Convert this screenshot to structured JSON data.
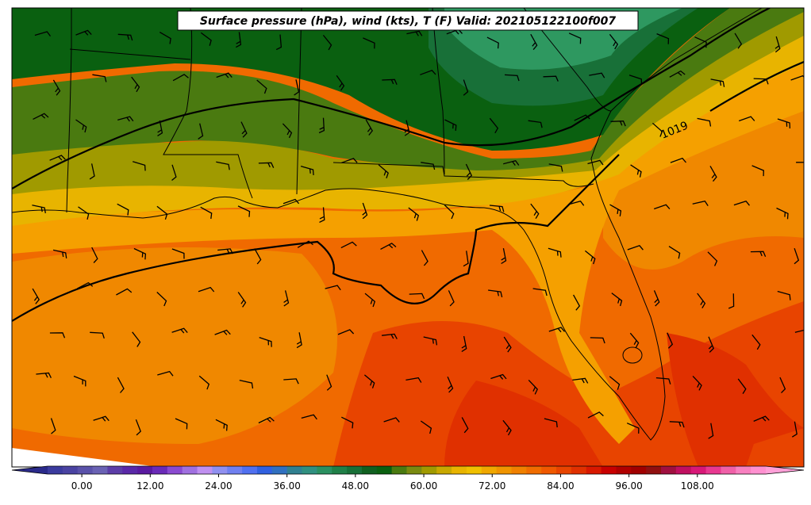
{
  "title": "Surface pressure (hPa), wind (kts), T (F) Valid: 202105122100f007",
  "isobar_labels": [
    "1019"
  ],
  "colorbar": {
    "tick_labels": [
      "0.00",
      "12.00",
      "24.00",
      "36.00",
      "48.00",
      "60.00",
      "72.00",
      "84.00",
      "96.00",
      "108.00"
    ],
    "min": -6,
    "max": 120,
    "step": 3,
    "colors": [
      "#3b3b9e",
      "#4a43a2",
      "#5a52aa",
      "#6a62b4",
      "#5c3da8",
      "#5a28a8",
      "#5a1aa0",
      "#6a2ab8",
      "#8a4ad0",
      "#a070e0",
      "#c090f0",
      "#9090f0",
      "#7080f0",
      "#5070f0",
      "#3060e0",
      "#3070c0",
      "#308090",
      "#309080",
      "#2a9060",
      "#208048",
      "#187038",
      "#106020",
      "#0a6010",
      "#4a7a10",
      "#7a8a10",
      "#a09a00",
      "#c8a800",
      "#e8b400",
      "#f0c000",
      "#f0a800",
      "#f09400",
      "#f08000",
      "#f06c00",
      "#f05800",
      "#e84400",
      "#e03000",
      "#d81800",
      "#c80000",
      "#b00000",
      "#a00000",
      "#901010",
      "#a01040",
      "#c01060",
      "#d81878",
      "#e83890",
      "#f060a8",
      "#f880c0",
      "#ff90d0"
    ],
    "under_color": "#2a2a8a",
    "over_color": "#ffa0d8"
  },
  "field_colors": {
    "f_60_63": "#0a6010",
    "f_57_60": "#187038",
    "f_54_57": "#2e9860",
    "f_63_66": "#4a7a10",
    "f_66_69": "#7a8a10",
    "f_69_72": "#a09a00",
    "f_72_75": "#e8b400",
    "f_75_78": "#f5a000",
    "f_78_81": "#f08800",
    "f_81_84": "#f06a00",
    "f_84_87": "#e84400",
    "f_87_90": "#e03000",
    "coast": "#000000"
  }
}
